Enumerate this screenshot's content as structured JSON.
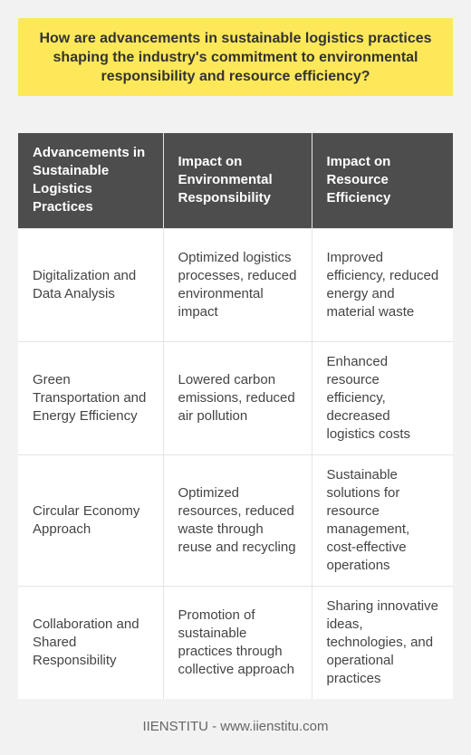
{
  "title": "How are advancements in sustainable logistics practices shaping the industry's commitment to environmental responsibility and resource efficiency?",
  "table": {
    "headers": [
      "Advancements in Sustainable Logistics Practices",
      "Impact on Environmental Responsibility",
      "Impact on Resource Efficiency"
    ],
    "rows": [
      [
        "Digitalization and Data Analysis",
        "Optimized logistics processes, reduced environmental impact",
        "Improved efficiency, reduced energy and material waste"
      ],
      [
        "Green Transportation and Energy Efficiency",
        "Lowered carbon emissions, reduced air pollution",
        "Enhanced resource efficiency, decreased logistics costs"
      ],
      [
        "Circular Economy Approach",
        "Optimized resources, reduced waste through reuse and recycling",
        "Sustainable solutions for resource management, cost-effective operations"
      ],
      [
        "Collaboration and Shared Responsibility",
        "Promotion of sustainable practices through collective approach",
        "Sharing innovative ideas, technologies, and operational practices"
      ]
    ]
  },
  "footer": "IIENSTITU - www.iienstitu.com",
  "colors": {
    "title_background": "#fde85a",
    "header_background": "#4d4d4d",
    "page_background": "#f2f2f2"
  }
}
